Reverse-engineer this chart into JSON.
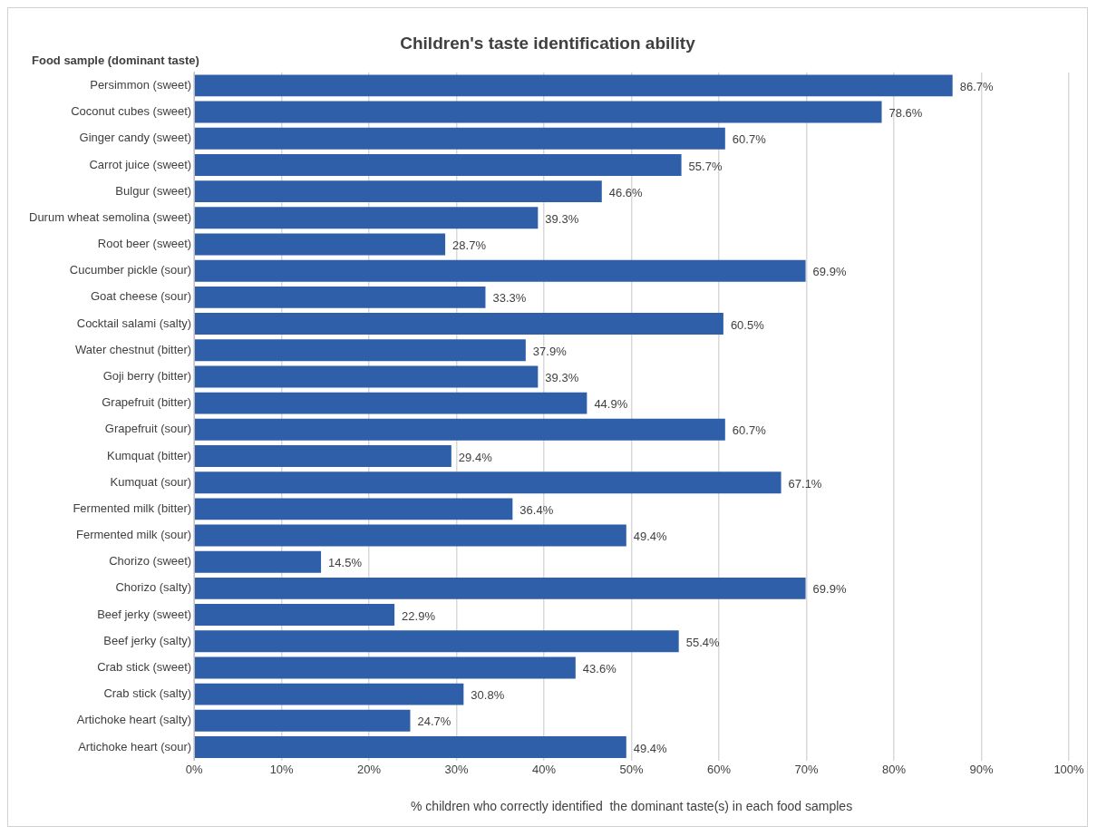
{
  "chart_data": {
    "type": "bar",
    "orientation": "horizontal",
    "title": "Children's taste identification ability",
    "ylabel": "Food sample (dominant taste)",
    "xlabel": "% children who correctly identified  the dominant taste(s) in each food samples",
    "categories": [
      "Persimmon (sweet)",
      "Coconut cubes (sweet)",
      "Ginger candy (sweet)",
      "Carrot juice (sweet)",
      "Bulgur (sweet)",
      "Durum wheat semolina (sweet)",
      "Root beer (sweet)",
      "Cucumber pickle (sour)",
      "Goat cheese (sour)",
      "Cocktail salami (salty)",
      "Water chestnut (bitter)",
      "Goji berry (bitter)",
      "Grapefruit (bitter)",
      "Grapefruit (sour)",
      "Kumquat (bitter)",
      "Kumquat (sour)",
      "Fermented milk (bitter)",
      "Fermented milk (sour)",
      "Chorizo (sweet)",
      "Chorizo (salty)",
      "Beef jerky (sweet)",
      "Beef jerky (salty)",
      "Crab stick (sweet)",
      "Crab stick (salty)",
      "Artichoke heart (salty)",
      "Artichoke heart (sour)"
    ],
    "values": [
      86.7,
      78.6,
      60.7,
      55.7,
      46.6,
      39.3,
      28.7,
      69.9,
      33.3,
      60.5,
      37.9,
      39.3,
      44.9,
      60.7,
      29.4,
      67.1,
      36.4,
      49.4,
      14.5,
      69.9,
      22.9,
      55.4,
      43.6,
      30.8,
      24.7,
      49.4
    ],
    "value_labels": [
      "86.7%",
      "78.6%",
      "60.7%",
      "55.7%",
      "46.6%",
      "39.3%",
      "28.7%",
      "69.9%",
      "33.3%",
      "60.5%",
      "37.9%",
      "39.3%",
      "44.9%",
      "60.7%",
      "29.4%",
      "67.1%",
      "36.4%",
      "49.4%",
      "14.5%",
      "69.9%",
      "22.9%",
      "55.4%",
      "43.6%",
      "30.8%",
      "24.7%",
      "49.4%"
    ],
    "color": "#2e5fa8",
    "xlim": [
      0,
      100
    ],
    "xticks": [
      {
        "value": 0,
        "label": "0%"
      },
      {
        "value": 10,
        "label": "10%"
      },
      {
        "value": 20,
        "label": "20%"
      },
      {
        "value": 30,
        "label": "30%"
      },
      {
        "value": 40,
        "label": "40%"
      },
      {
        "value": 50,
        "label": "50%"
      },
      {
        "value": 60,
        "label": "60%"
      },
      {
        "value": 70,
        "label": "70%"
      },
      {
        "value": 80,
        "label": "80%"
      },
      {
        "value": 90,
        "label": "90%"
      },
      {
        "value": 100,
        "label": "100%"
      }
    ],
    "grid": "x",
    "legend": false
  }
}
